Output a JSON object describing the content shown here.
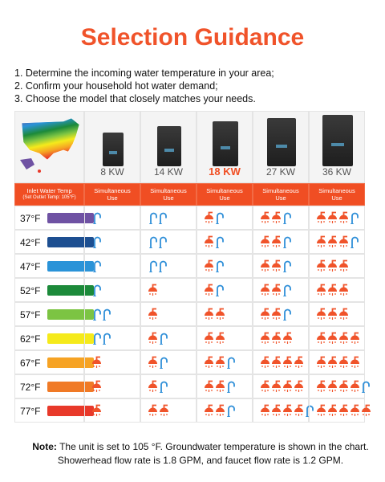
{
  "title": "Selection Guidance",
  "instructions": [
    "1. Determine the incoming water temperature in your area;",
    "2. Confirm your household hot water demand;",
    "3. Choose the model that closely matches your needs."
  ],
  "header_label": "Inlet Water Temp",
  "header_sub": "(Set Outlet Temp: 105°F)",
  "models": [
    {
      "label": "8 KW",
      "use": "Simultaneous Use",
      "highlight": false
    },
    {
      "label": "14 KW",
      "use": "Simultaneous Use",
      "highlight": false
    },
    {
      "label": "18 KW",
      "use": "Simultaneous Use",
      "highlight": true
    },
    {
      "label": "27 KW",
      "use": "Simultaneous Use",
      "highlight": false
    },
    {
      "label": "36 KW",
      "use": "Simultaneous Use",
      "highlight": false
    }
  ],
  "rows": [
    {
      "temp": "37°F",
      "color": "#6f52a3",
      "cells": [
        {
          "shower": 0,
          "faucet": 1
        },
        {
          "shower": 0,
          "faucet": 2
        },
        {
          "shower": 1,
          "faucet": 1
        },
        {
          "shower": 2,
          "faucet": 1
        },
        {
          "shower": 3,
          "faucet": 1
        }
      ]
    },
    {
      "temp": "42°F",
      "color": "#1d4f91",
      "cells": [
        {
          "shower": 0,
          "faucet": 1
        },
        {
          "shower": 0,
          "faucet": 2
        },
        {
          "shower": 1,
          "faucet": 1
        },
        {
          "shower": 2,
          "faucet": 1
        },
        {
          "shower": 3,
          "faucet": 1
        }
      ]
    },
    {
      "temp": "47°F",
      "color": "#2a93d8",
      "cells": [
        {
          "shower": 0,
          "faucet": 1
        },
        {
          "shower": 0,
          "faucet": 2
        },
        {
          "shower": 1,
          "faucet": 1
        },
        {
          "shower": 2,
          "faucet": 1
        },
        {
          "shower": 3,
          "faucet": 0
        }
      ]
    },
    {
      "temp": "52°F",
      "color": "#1c8a3a",
      "cells": [
        {
          "shower": 0,
          "faucet": 1
        },
        {
          "shower": 1,
          "faucet": 0
        },
        {
          "shower": 1,
          "faucet": 1
        },
        {
          "shower": 2,
          "faucet": 1
        },
        {
          "shower": 3,
          "faucet": 0
        }
      ]
    },
    {
      "temp": "57°F",
      "color": "#7cc443",
      "cells": [
        {
          "shower": 0,
          "faucet": 2
        },
        {
          "shower": 1,
          "faucet": 0
        },
        {
          "shower": 2,
          "faucet": 0
        },
        {
          "shower": 2,
          "faucet": 1
        },
        {
          "shower": 3,
          "faucet": 0
        }
      ]
    },
    {
      "temp": "62°F",
      "color": "#f5ea1b",
      "cells": [
        {
          "shower": 0,
          "faucet": 2
        },
        {
          "shower": 1,
          "faucet": 1
        },
        {
          "shower": 2,
          "faucet": 0
        },
        {
          "shower": 3,
          "faucet": 0
        },
        {
          "shower": 4,
          "faucet": 0
        }
      ]
    },
    {
      "temp": "67°F",
      "color": "#f6a324",
      "cells": [
        {
          "shower": 1,
          "faucet": 0
        },
        {
          "shower": 1,
          "faucet": 1
        },
        {
          "shower": 2,
          "faucet": 1
        },
        {
          "shower": 4,
          "faucet": 0
        },
        {
          "shower": 4,
          "faucet": 0
        }
      ]
    },
    {
      "temp": "72°F",
      "color": "#f07a26",
      "cells": [
        {
          "shower": 1,
          "faucet": 0
        },
        {
          "shower": 1,
          "faucet": 1
        },
        {
          "shower": 2,
          "faucet": 1
        },
        {
          "shower": 4,
          "faucet": 0
        },
        {
          "shower": 4,
          "faucet": 1
        }
      ]
    },
    {
      "temp": "77°F",
      "color": "#e8392a",
      "cells": [
        {
          "shower": 1,
          "faucet": 0
        },
        {
          "shower": 2,
          "faucet": 0
        },
        {
          "shower": 2,
          "faucet": 1
        },
        {
          "shower": 4,
          "faucet": 1
        },
        {
          "shower": 5,
          "faucet": 0
        }
      ]
    }
  ],
  "note_label": "Note:",
  "note": "The unit is set to 105 °F. Groundwater temperature is shown in the chart. Showerhead flow rate is 1.8 GPM, and faucet flow rate is 1.2 GPM."
}
